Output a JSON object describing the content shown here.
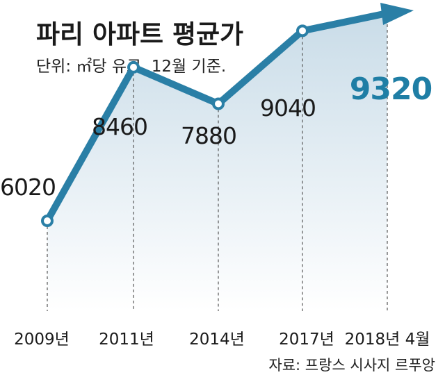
{
  "chart_data": {
    "type": "line",
    "title": "파리 아파트 평균가",
    "subtitle": "단위: ㎡당 유로. 12월 기준.",
    "categories": [
      "2009년",
      "2011년",
      "2014년",
      "2017년",
      "2018년 4월"
    ],
    "values": [
      6020,
      8460,
      7880,
      9040,
      9320
    ],
    "data_labels": [
      "6020",
      "8460",
      "7880",
      "9040",
      "9320"
    ],
    "source": "자료: 프랑스 시사지 르푸앙",
    "colors": {
      "line": "#2a7fa6",
      "area_top": "#c9dce8",
      "area_bottom": "#ffffff",
      "highlight": "#1f7ea5",
      "gridline": "#555555"
    }
  }
}
